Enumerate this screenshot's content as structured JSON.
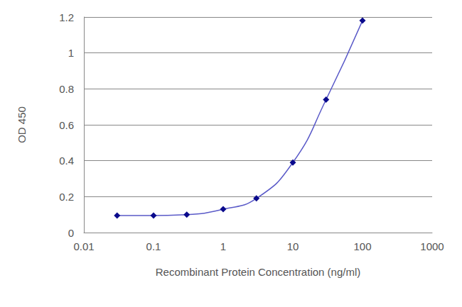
{
  "chart_data": {
    "type": "line",
    "x_label": "Recombinant Protein Concentration (ng/ml)",
    "y_label": "OD 450",
    "x": [
      0.03,
      0.1,
      0.3,
      1,
      3,
      10,
      30,
      100
    ],
    "values": [
      0.095,
      0.095,
      0.1,
      0.13,
      0.19,
      0.39,
      0.74,
      1.18
    ],
    "color": "#0a0a8c",
    "marker": "diamond",
    "log": "x",
    "xlim": [
      0.01,
      1000
    ],
    "xticks": [
      0.01,
      0.1,
      1,
      10,
      100,
      1000
    ],
    "ylim": [
      0,
      1.2
    ],
    "yticks": [
      0,
      0.2,
      0.4,
      0.6,
      0.8,
      1,
      1.2
    ],
    "grid": true
  }
}
